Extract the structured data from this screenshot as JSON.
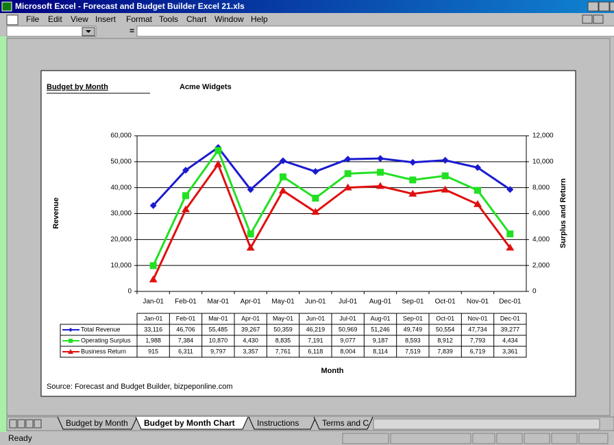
{
  "window": {
    "title": "Microsoft Excel - Forecast and Budget Builder Excel 21.xls",
    "menu": [
      "File",
      "Edit",
      "View",
      "Insert",
      "Format",
      "Tools",
      "Chart",
      "Window",
      "Help"
    ],
    "formula_sign": "=",
    "sheet_tabs": [
      "Budget by Month",
      "Budget by Month Chart",
      "Instructions",
      "Terms and C"
    ],
    "active_tab": 1,
    "status": "Ready"
  },
  "chart_data": {
    "type": "line",
    "title": "Budget by Month",
    "subtitle": "Acme Widgets",
    "x_label": "Month",
    "y_label": "Revenue",
    "y2_label": "Surplus and Return",
    "source": "Source: Forecast and Budget Builder, bizpeponline.com",
    "categories": [
      "Jan-01",
      "Feb-01",
      "Mar-01",
      "Apr-01",
      "May-01",
      "Jun-01",
      "Jul-01",
      "Aug-01",
      "Sep-01",
      "Oct-01",
      "Nov-01",
      "Dec-01"
    ],
    "series": [
      {
        "name": "Total Revenue",
        "color": "#1a1ad0",
        "marker": "diamond",
        "values": [
          33116,
          46706,
          55485,
          39267,
          50359,
          46219,
          50969,
          51246,
          49749,
          50554,
          47734,
          39277
        ],
        "value_labels": [
          "33,116",
          "46,706",
          "55,485",
          "39,267",
          "50,359",
          "46,219",
          "50,969",
          "51,246",
          "49,749",
          "50,554",
          "47,734",
          "39,277"
        ]
      },
      {
        "name": "Operating Surplus",
        "color": "#22e022",
        "marker": "square",
        "axis": "y2",
        "values": [
          1988,
          7384,
          10870,
          4430,
          8835,
          7191,
          9077,
          9187,
          8593,
          8912,
          7793,
          4434
        ],
        "value_labels": [
          "1,988",
          "7,384",
          "10,870",
          "4,430",
          "8,835",
          "7,191",
          "9,077",
          "9,187",
          "8,593",
          "8,912",
          "7,793",
          "4,434"
        ]
      },
      {
        "name": "Business Return",
        "color": "#e01010",
        "marker": "triangle",
        "axis": "y2",
        "values": [
          915,
          6311,
          9797,
          3357,
          7761,
          6118,
          8004,
          8114,
          7519,
          7839,
          6719,
          3361
        ],
        "value_labels": [
          "915",
          "6,311",
          "9,797",
          "3,357",
          "7,761",
          "6,118",
          "8,004",
          "8,114",
          "7,519",
          "7,839",
          "6,719",
          "3,361"
        ]
      }
    ],
    "ylim": [
      0,
      60000
    ],
    "yticks": [
      0,
      {
        "value": 10000,
        "label": "10,000"
      },
      {
        "value": 20000,
        "label": "20,000"
      },
      {
        "value": 30000,
        "label": "30,000"
      },
      {
        "value": 40000,
        "label": "40,000"
      },
      {
        "value": 50000,
        "label": "50,000"
      },
      {
        "value": 60000,
        "label": "60,000"
      }
    ],
    "y2lim": [
      0,
      12000
    ],
    "y2ticks": [
      0,
      {
        "value": 2000,
        "label": "2,000"
      },
      {
        "value": 4000,
        "label": "4,000"
      },
      {
        "value": 6000,
        "label": "6,000"
      },
      {
        "value": 8000,
        "label": "8,000"
      },
      {
        "value": 10000,
        "label": "10,000"
      },
      {
        "value": 12000,
        "label": "12,000"
      }
    ],
    "grid": true,
    "data_table": true
  }
}
